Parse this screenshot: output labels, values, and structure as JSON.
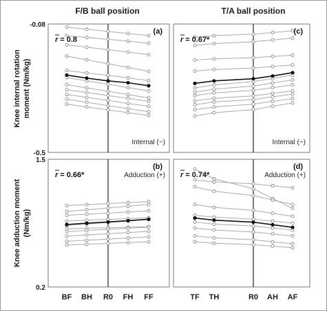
{
  "column_titles": [
    "F/B ball position",
    "T/A ball position"
  ],
  "ylabels": {
    "top": [
      "Knee internal rotation",
      "moment (Nm/kg)"
    ],
    "bottom": [
      "Knee adduction moment",
      "(Nm/kg)"
    ]
  },
  "chart_data": [
    {
      "type": "line",
      "panel": "(a)",
      "r_text": "= 0.8",
      "note": "Internal (−)",
      "categories": [
        "BF",
        "BH",
        "R0",
        "FH",
        "FF"
      ],
      "ylim": [
        -0.5,
        -0.08
      ],
      "ytick_labels": [
        "-0.08",
        "-0.5"
      ],
      "mean": [
        -0.247,
        -0.257,
        -0.266,
        -0.272,
        -0.282
      ],
      "subjects": [
        [
          -0.09,
          -0.097,
          -0.104,
          -0.111,
          -0.118
        ],
        [
          -0.118,
          -0.124,
          -0.13,
          -0.136,
          -0.143
        ],
        [
          -0.148,
          -0.156,
          -0.164,
          -0.172,
          -0.18
        ],
        [
          -0.185,
          -0.197,
          -0.21,
          -0.222,
          -0.235
        ],
        [
          -0.232,
          -0.24,
          -0.248,
          -0.256,
          -0.265
        ],
        [
          -0.255,
          -0.266,
          -0.277,
          -0.288,
          -0.299
        ],
        [
          -0.278,
          -0.289,
          -0.3,
          -0.311,
          -0.322
        ],
        [
          -0.295,
          -0.304,
          -0.314,
          -0.323,
          -0.333
        ],
        [
          -0.311,
          -0.32,
          -0.33,
          -0.34,
          -0.349
        ],
        [
          -0.326,
          -0.336,
          -0.347,
          -0.357,
          -0.367
        ],
        [
          -0.342,
          -0.351,
          -0.361,
          -0.37,
          -0.379
        ]
      ]
    },
    {
      "type": "line",
      "panel": "(c)",
      "r_text": "= 0.67*",
      "note": "Internal (−)",
      "categories": [
        "TF",
        "TH",
        "R0",
        "AH",
        "AF"
      ],
      "ylim": [
        -0.5,
        -0.08
      ],
      "ytick_labels": [],
      "mean": [
        -0.274,
        -0.266,
        -0.259,
        -0.25,
        -0.239
      ],
      "subjects": [
        [
          -0.123,
          -0.118,
          -0.113,
          -0.108,
          -0.102
        ],
        [
          -0.15,
          -0.144,
          -0.138,
          -0.132,
          -0.126
        ],
        [
          -0.198,
          -0.194,
          -0.19,
          -0.186,
          -0.182
        ],
        [
          -0.234,
          -0.229,
          -0.224,
          -0.219,
          -0.214
        ],
        [
          -0.289,
          -0.279,
          -0.268,
          -0.258,
          -0.247
        ],
        [
          -0.303,
          -0.293,
          -0.283,
          -0.273,
          -0.263
        ],
        [
          -0.314,
          -0.305,
          -0.297,
          -0.288,
          -0.279
        ],
        [
          -0.331,
          -0.323,
          -0.315,
          -0.307,
          -0.299
        ],
        [
          -0.344,
          -0.335,
          -0.327,
          -0.318,
          -0.309
        ],
        [
          -0.36,
          -0.351,
          -0.342,
          -0.333,
          -0.324
        ],
        [
          -0.381,
          -0.37,
          -0.36,
          -0.349,
          -0.338
        ]
      ]
    },
    {
      "type": "line",
      "panel": "(b)",
      "r_text": "= 0.66*",
      "note": "Adduction (+)",
      "categories": [
        "BF",
        "BH",
        "R0",
        "FH",
        "FF"
      ],
      "ylim": [
        0.2,
        1.5
      ],
      "ytick_labels": [
        "1.5",
        "0.2"
      ],
      "mean": [
        0.836,
        0.849,
        0.862,
        0.875,
        0.89
      ],
      "subjects": [
        [
          1.029,
          1.039,
          1.049,
          1.059,
          1.069
        ],
        [
          0.968,
          0.986,
          1.004,
          1.022,
          1.04
        ],
        [
          0.93,
          0.941,
          0.952,
          0.963,
          0.975
        ],
        [
          0.872,
          0.88,
          0.888,
          0.896,
          0.904
        ],
        [
          0.826,
          0.841,
          0.856,
          0.871,
          0.886
        ],
        [
          0.793,
          0.798,
          0.803,
          0.808,
          0.813
        ],
        [
          0.765,
          0.776,
          0.787,
          0.798,
          0.809
        ],
        [
          0.718,
          0.73,
          0.742,
          0.754,
          0.766
        ],
        [
          0.665,
          0.676,
          0.688,
          0.699,
          0.711
        ],
        [
          0.627,
          0.635,
          0.644,
          0.652,
          0.66
        ]
      ]
    },
    {
      "type": "line",
      "panel": "(d)",
      "r_text": "= 0.74*",
      "note": "Adduction (+)",
      "categories": [
        "TF",
        "TH",
        "R0",
        "AH",
        "AF"
      ],
      "ylim": [
        0.2,
        1.5
      ],
      "ytick_labels": [],
      "mean": [
        0.902,
        0.88,
        0.86,
        0.834,
        0.807
      ],
      "subjects": [
        [
          1.4,
          1.3,
          1.2,
          1.1,
          1.0
        ],
        [
          1.29,
          1.27,
          1.25,
          1.23,
          1.21
        ],
        [
          1.22,
          1.175,
          1.13,
          1.085,
          1.04
        ],
        [
          1.04,
          1.01,
          0.98,
          0.95,
          0.92
        ],
        [
          0.93,
          0.91,
          0.89,
          0.87,
          0.85
        ],
        [
          0.86,
          0.84,
          0.82,
          0.8,
          0.78
        ],
        [
          0.8,
          0.78,
          0.76,
          0.74,
          0.72
        ],
        [
          0.72,
          0.7,
          0.68,
          0.66,
          0.64
        ],
        [
          0.66,
          0.645,
          0.63,
          0.615,
          0.6
        ]
      ]
    }
  ]
}
